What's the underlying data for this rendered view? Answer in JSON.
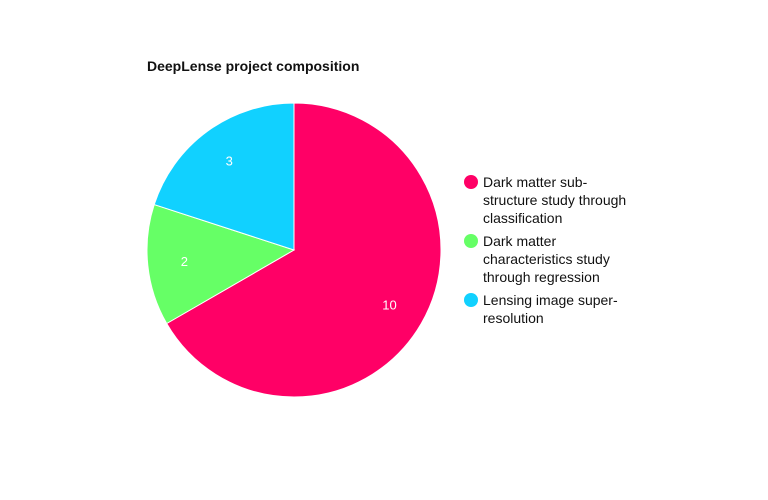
{
  "chart_data": {
    "type": "pie",
    "title": "DeepLense project composition",
    "slices": [
      {
        "label": "Dark matter sub-structure study through classification",
        "value": 10,
        "color": "#ff0066"
      },
      {
        "label": "Dark matter characteristics study through regression",
        "value": 2,
        "color": "#66ff66"
      },
      {
        "label": "Lensing image super-resolution",
        "value": 3,
        "color": "#11d1ff"
      }
    ],
    "legend_placement": "right"
  },
  "legend": {
    "items": [
      {
        "label": "Dark matter sub-structure study through classification",
        "color": "#ff0066"
      },
      {
        "label": "Dark matter characteristics study through regression",
        "color": "#66ff66"
      },
      {
        "label": "Lensing image super-resolution",
        "color": "#11d1ff"
      }
    ]
  }
}
